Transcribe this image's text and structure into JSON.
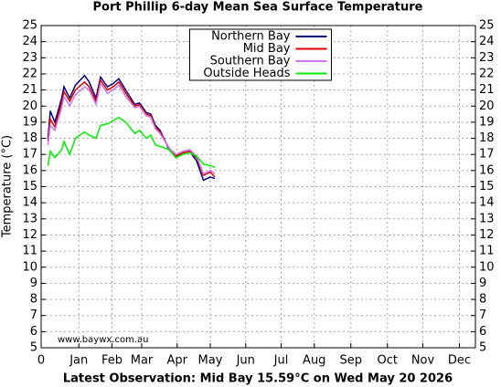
{
  "chart_data": {
    "type": "line",
    "title": "Port Phillip 6-day Mean Sea Surface Temperature",
    "y_label": "Temperature (°C)",
    "footer": "Latest Observation: Mid Bay 15.59°C on Wed May 20 2026",
    "source": "www.baywx.com.au",
    "x": [
      6,
      8,
      12,
      18,
      20,
      25,
      30,
      38,
      42,
      48,
      52,
      58,
      63,
      68,
      74,
      82,
      86,
      92,
      96,
      100,
      104,
      112,
      118,
      124,
      130,
      136,
      142,
      148,
      152
    ],
    "series": [
      {
        "name": "Northern Bay",
        "color": "#000080",
        "values": [
          18.0,
          19.7,
          19.0,
          20.5,
          21.2,
          20.5,
          21.3,
          21.9,
          21.5,
          20.5,
          21.8,
          21.2,
          21.4,
          21.7,
          21.0,
          20.1,
          20.2,
          19.6,
          19.5,
          18.8,
          18.5,
          17.3,
          16.8,
          17.1,
          17.2,
          16.6,
          15.4,
          15.6,
          15.5
        ]
      },
      {
        "name": "Mid Bay",
        "color": "#e00000",
        "values": [
          17.8,
          19.2,
          18.7,
          20.2,
          20.9,
          20.3,
          21.0,
          21.5,
          21.2,
          20.3,
          21.6,
          21.0,
          21.2,
          21.5,
          20.8,
          20.0,
          20.1,
          19.5,
          19.4,
          18.7,
          18.4,
          17.4,
          16.9,
          17.1,
          17.2,
          16.8,
          15.7,
          15.9,
          15.6
        ]
      },
      {
        "name": "Southern Bay",
        "color": "#cc77ee",
        "values": [
          17.6,
          18.8,
          18.5,
          19.9,
          20.6,
          20.0,
          20.7,
          21.2,
          21.0,
          20.1,
          21.4,
          20.8,
          21.0,
          21.3,
          20.6,
          19.9,
          20.0,
          19.4,
          19.3,
          18.6,
          18.3,
          17.4,
          17.0,
          17.2,
          17.3,
          16.9,
          15.8,
          16.0,
          15.8
        ]
      },
      {
        "name": "Outside Heads",
        "color": "#00ee00",
        "values": [
          16.3,
          17.2,
          16.8,
          17.3,
          17.8,
          17.0,
          18.0,
          18.4,
          18.2,
          18.0,
          18.8,
          18.9,
          19.1,
          19.3,
          19.0,
          18.3,
          18.5,
          18.0,
          18.2,
          17.6,
          17.5,
          17.3,
          16.8,
          17.0,
          17.1,
          16.9,
          16.4,
          16.3,
          16.2
        ]
      }
    ],
    "xlim": [
      0,
      380
    ],
    "xticks": [
      {
        "value": 0,
        "label": "0"
      },
      {
        "value": 33,
        "label": "Jan"
      },
      {
        "value": 62,
        "label": "Feb"
      },
      {
        "value": 88,
        "label": "Mar"
      },
      {
        "value": 119,
        "label": "Apr"
      },
      {
        "value": 148,
        "label": "May"
      },
      {
        "value": 179,
        "label": "Jun"
      },
      {
        "value": 210,
        "label": "Jul"
      },
      {
        "value": 239,
        "label": "Aug"
      },
      {
        "value": 271,
        "label": "Sep"
      },
      {
        "value": 303,
        "label": "Oct"
      },
      {
        "value": 334,
        "label": "Nov"
      },
      {
        "value": 366,
        "label": "Dec"
      }
    ],
    "ylim": [
      5,
      25
    ],
    "yticks": [
      5,
      6,
      7,
      8,
      9,
      10,
      11,
      12,
      13,
      14,
      15,
      16,
      17,
      18,
      19,
      20,
      21,
      22,
      23,
      24,
      25
    ],
    "grid": true,
    "legend": "upper center"
  }
}
